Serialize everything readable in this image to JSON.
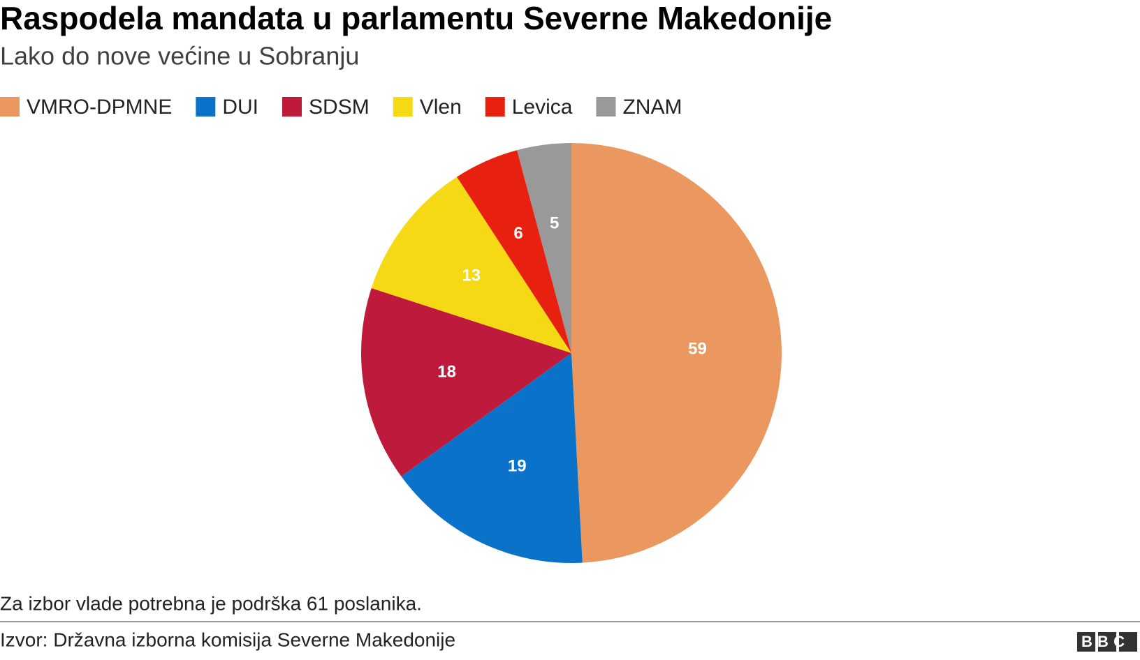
{
  "chart_data": {
    "type": "pie",
    "title": "Raspodela mandata u parlamentu Severne Makedonije",
    "subtitle": "Lako do nove većine u Sobranju",
    "categories": [
      "VMRO-DPMNE",
      "DUI",
      "SDSM",
      "Vlen",
      "Levica",
      "ZNAM"
    ],
    "values": [
      59,
      19,
      18,
      13,
      6,
      5
    ],
    "colors": [
      "#eb9860",
      "#0a72c8",
      "#be1a3c",
      "#f5d915",
      "#e8200f",
      "#999999"
    ],
    "note": "Za izbor vlade potrebna je podrška 61 poslanika.",
    "source": "Izvor: Državna izborna komisija Severne Makedonije"
  },
  "logo": "BBC"
}
